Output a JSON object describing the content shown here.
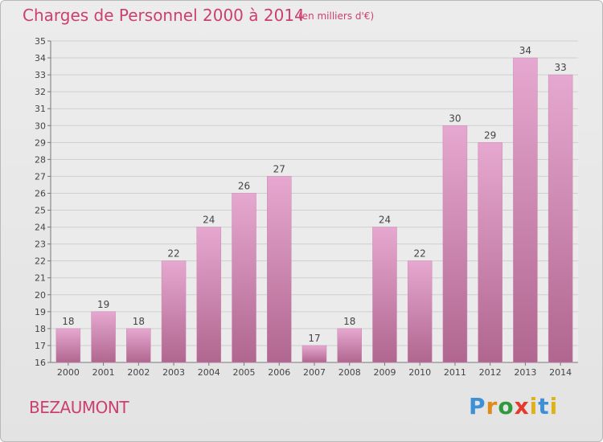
{
  "header": {
    "title": "Charges de Personnel 2000 à 2014",
    "subtitle": "(en milliers d'€)"
  },
  "footer": {
    "town": "BEZAUMONT",
    "logo": [
      "P",
      "r",
      "o",
      "x",
      "i",
      "t",
      "i"
    ]
  },
  "colors": {
    "title": "#cc3f6e",
    "bar_top": "#e6a8d0",
    "bar_bottom": "#b0668f",
    "grid": "#cfcfcf",
    "plot_bg": "#ebebeb"
  },
  "chart_data": {
    "type": "bar",
    "title": "Charges de Personnel 2000 à 2014",
    "subtitle": "(en milliers d'€)",
    "categories": [
      "2000",
      "2001",
      "2002",
      "2003",
      "2004",
      "2005",
      "2006",
      "2007",
      "2008",
      "2009",
      "2010",
      "2011",
      "2012",
      "2013",
      "2014"
    ],
    "values": [
      18,
      19,
      18,
      22,
      24,
      26,
      27,
      17,
      18,
      24,
      22,
      30,
      29,
      34,
      33
    ],
    "ylim": [
      16,
      35
    ],
    "yticks": [
      16,
      17,
      18,
      19,
      20,
      21,
      22,
      23,
      24,
      25,
      26,
      27,
      28,
      29,
      30,
      31,
      32,
      33,
      34,
      35
    ],
    "grid": true,
    "data_labels": true
  }
}
